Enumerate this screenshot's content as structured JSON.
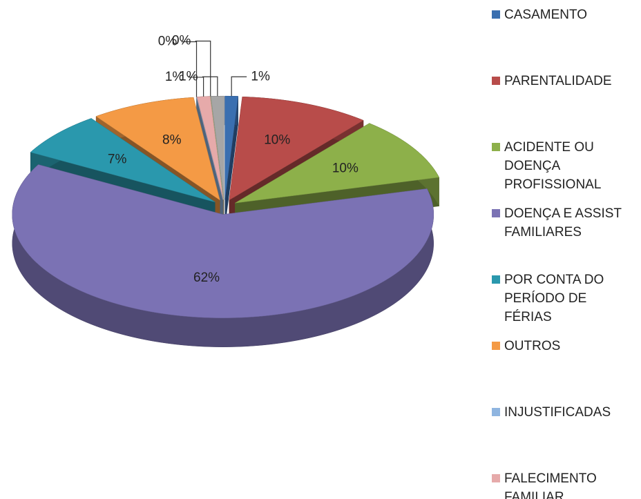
{
  "chart_data": {
    "type": "pie3d",
    "categories": [
      "CASAMENTO",
      "PARENTALIDADE",
      "ACIDENTE OU DOENÇA PROFISSIONAL",
      "DOENÇA E ASSIST FAMILIARES",
      "POR CONTA DO PERÍODO DE FÉRIAS",
      "OUTROS",
      "INJUSTIFICADAS",
      "FALECIMENTO FAMILIAR",
      null,
      null
    ],
    "values": [
      1,
      10,
      10,
      62,
      7,
      8,
      0,
      1,
      0,
      1
    ],
    "value_labels": [
      "1%",
      "10%",
      "10%",
      "62%",
      "7%",
      "8%",
      "0%",
      "1%",
      "0%",
      "1%"
    ],
    "colors": [
      "#3a6fb0",
      "#b84c4a",
      "#8db04a",
      "#7b72b4",
      "#2a98ad",
      "#f49a45",
      "#8fb5e0",
      "#e6aaaa",
      "#b9d08f",
      "#a6a6a6"
    ],
    "legend": "right"
  }
}
